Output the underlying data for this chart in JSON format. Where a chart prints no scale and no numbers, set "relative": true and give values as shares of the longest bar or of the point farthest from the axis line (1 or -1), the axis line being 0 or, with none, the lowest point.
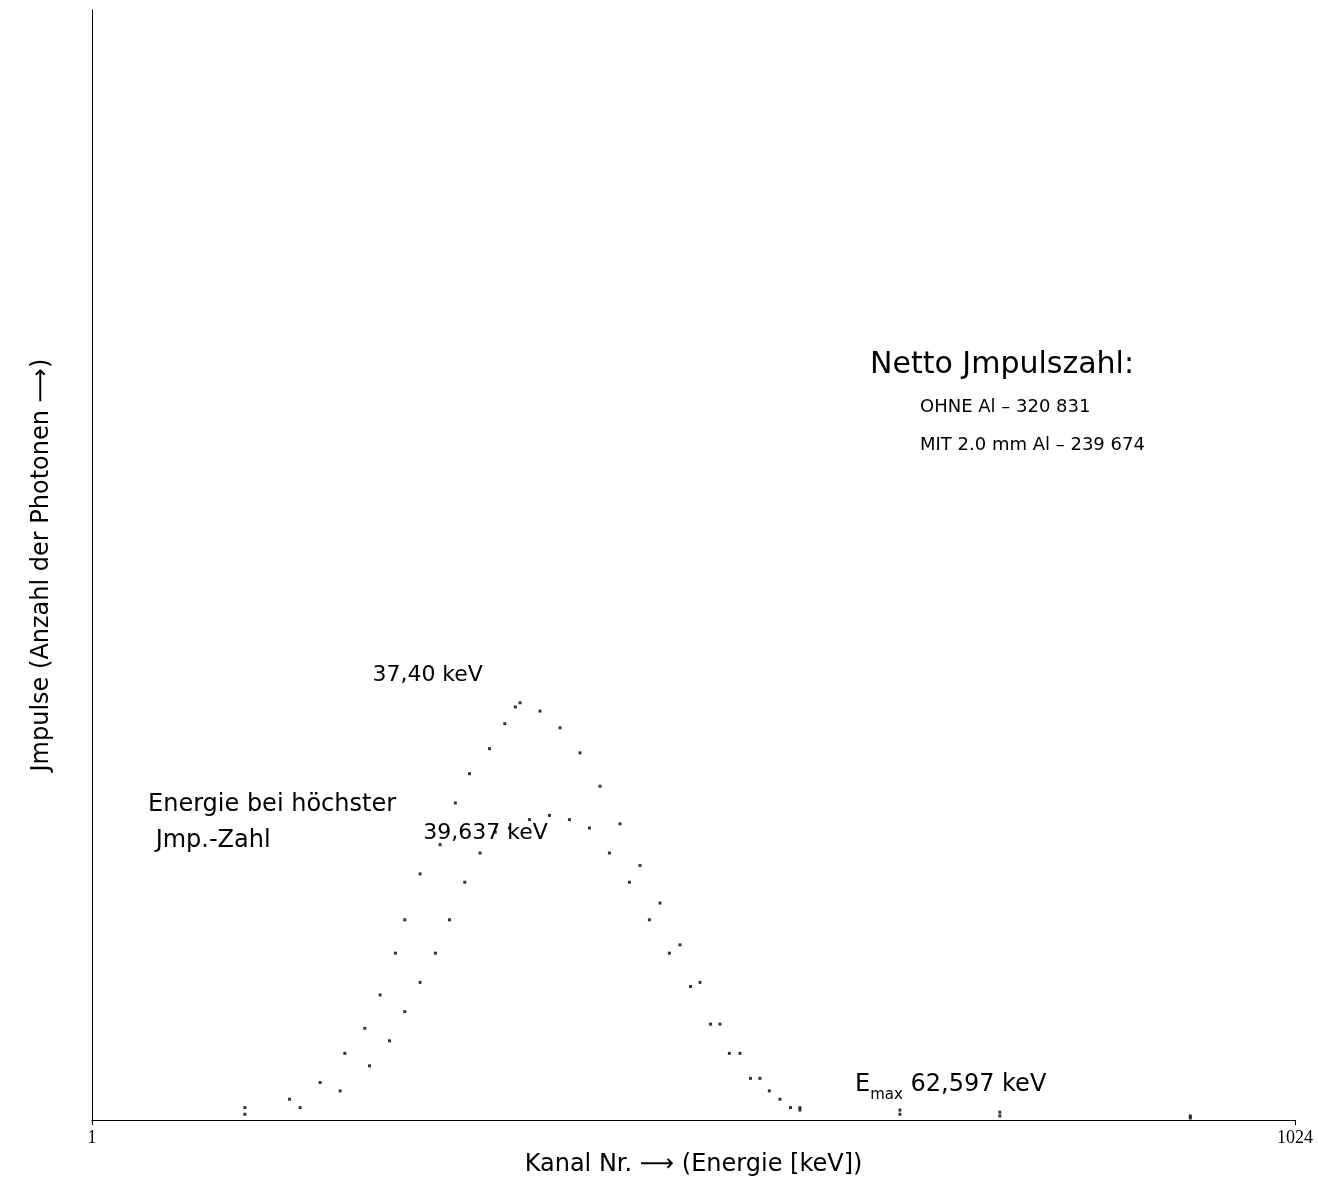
{
  "chart_data": {
    "type": "scatter",
    "relative": true,
    "xlabel": "Kanal Nr. ⟶ (Energie [keV])",
    "ylabel": "Jmpulse (Anzahl der Photonen ⟶)",
    "xlim": [
      1,
      1024
    ],
    "xticks": [
      1,
      1024
    ],
    "grid": false,
    "marker": "square",
    "series": [
      {
        "color": "#000000",
        "x": [
          131,
          169,
          195,
          216,
          233,
          246,
          259,
          267,
          280,
          297,
          310,
          322,
          339,
          352,
          361,
          365,
          382,
          399,
          416,
          433,
          450,
          467,
          484,
          501,
          518,
          535,
          552,
          569,
          586,
          603,
          688,
          773,
          935
        ],
        "values": [
          0.03,
          0.05,
          0.09,
          0.16,
          0.22,
          0.3,
          0.4,
          0.48,
          0.59,
          0.66,
          0.76,
          0.83,
          0.89,
          0.95,
          0.99,
          1.0,
          0.98,
          0.94,
          0.88,
          0.8,
          0.71,
          0.61,
          0.52,
          0.42,
          0.33,
          0.23,
          0.16,
          0.1,
          0.05,
          0.03,
          0.024,
          0.019,
          0.01
        ]
      },
      {
        "color": "#000000",
        "x": [
          131,
          178,
          212,
          237,
          254,
          267,
          280,
          293,
          305,
          318,
          331,
          344,
          356,
          373,
          390,
          407,
          424,
          441,
          458,
          475,
          492,
          510,
          527,
          543,
          561,
          577,
          595,
          603,
          688,
          773,
          935
        ],
        "values": [
          0.014,
          0.03,
          0.07,
          0.13,
          0.19,
          0.26,
          0.33,
          0.4,
          0.48,
          0.57,
          0.64,
          0.69,
          0.7,
          0.72,
          0.73,
          0.72,
          0.7,
          0.64,
          0.57,
          0.48,
          0.4,
          0.32,
          0.23,
          0.16,
          0.1,
          0.07,
          0.03,
          0.024,
          0.014,
          0.01,
          0.005
        ]
      }
    ],
    "annotations": [
      {
        "text": "37,40 keV",
        "x": 367,
        "y": 1.0
      },
      {
        "text": "39,637 keV",
        "x": 389,
        "y": 0.73
      },
      "Energie bei höchster Jmp.-Zahl",
      "E$_{max}$ 62,597 keV",
      "Netto Jmpulszahl:",
      "OHNE Al – 320 831",
      "MIT 2.0 mm Al – 239 674"
    ]
  }
}
